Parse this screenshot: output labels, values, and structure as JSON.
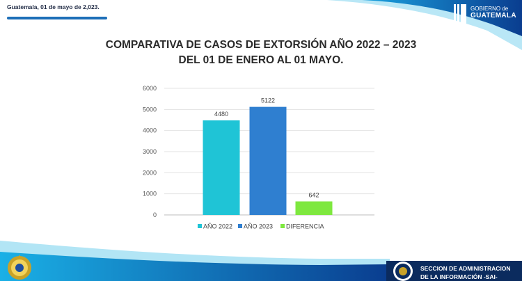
{
  "header": {
    "date_text": "Guatemala, 01 de mayo de 2,023.",
    "logo_line1": "GOBIERNO de",
    "logo_line2": "GUATEMALA"
  },
  "footer": {
    "line1": "SECCION DE ADMINISTRACION",
    "line2": "DE LA  INFORMACIÓN -SAI-"
  },
  "colors": {
    "accent_blue": "#1e6fb8",
    "cyan_bar": "#1fc4d6",
    "blue_bar": "#2f7fd0",
    "green_bar": "#7ee83f",
    "footer_navy": "#0b2b5e"
  },
  "chart_data": {
    "type": "bar",
    "title": "COMPARATIVA DE CASOS DE EXTORSIÓN AÑO 2022 – 2023",
    "subtitle": "DEL 01 DE ENERO AL 01 MAYO.",
    "xlabel": "",
    "ylabel": "",
    "ylim": [
      0,
      6000
    ],
    "yticks": [
      0,
      1000,
      2000,
      3000,
      4000,
      5000,
      6000
    ],
    "grid": true,
    "legend_position": "bottom",
    "series": [
      {
        "name": "AÑO 2022",
        "value": 4480,
        "color": "#1fc4d6"
      },
      {
        "name": "AÑO 2023",
        "value": 5122,
        "color": "#2f7fd0"
      },
      {
        "name": "DIFERENCIA",
        "value": 642,
        "color": "#7ee83f"
      }
    ]
  }
}
